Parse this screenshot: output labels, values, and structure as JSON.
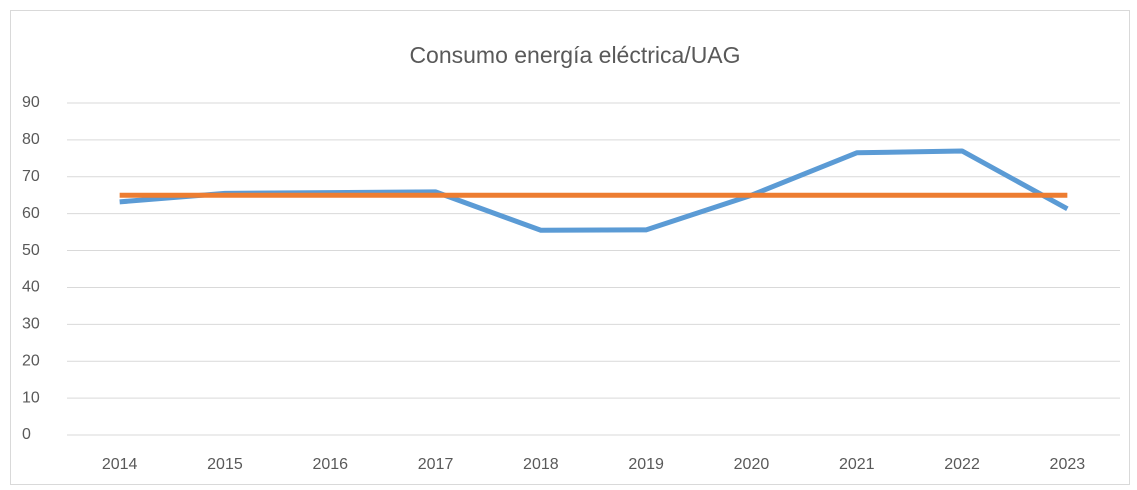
{
  "chart_data": {
    "type": "line",
    "title": "Consumo energía eléctrica/UAG",
    "categories": [
      "2014",
      "2015",
      "2016",
      "2017",
      "2018",
      "2019",
      "2020",
      "2021",
      "2022",
      "2023"
    ],
    "series": [
      {
        "color": "#5b9bd5",
        "values": [
          63.2,
          65.5,
          65.7,
          65.9,
          55.5,
          55.6,
          65,
          76.5,
          77,
          61.3
        ]
      },
      {
        "color": "#ed7d31",
        "values": [
          65,
          65,
          65,
          65,
          65,
          65,
          65,
          65,
          65,
          65
        ]
      }
    ],
    "ylim": [
      0,
      90
    ],
    "yticks": [
      0,
      10,
      20,
      30,
      40,
      50,
      60,
      70,
      80,
      90
    ],
    "grid": true
  }
}
